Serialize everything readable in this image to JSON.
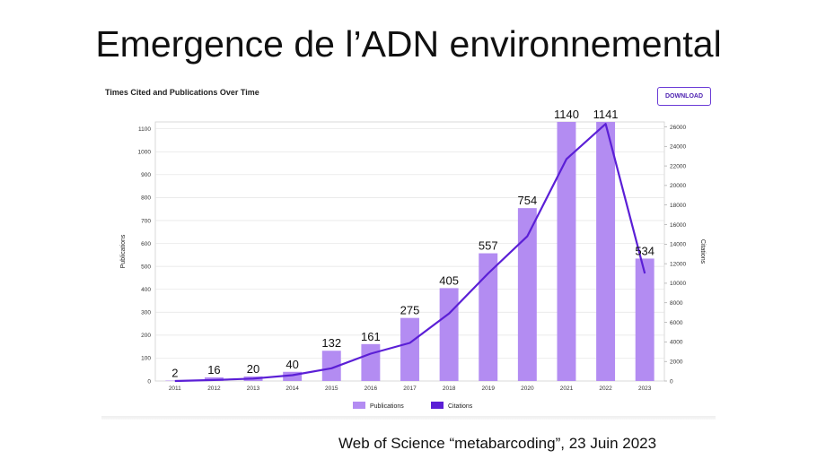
{
  "slide": {
    "title": "Emergence de l’ADN environnemental",
    "source": "Web of Science “metabarcoding”, 23 Juin 2023"
  },
  "panel": {
    "title": "Times Cited and Publications Over Time",
    "download_label": "DOWNLOAD"
  },
  "colors": {
    "publications_bar": "#b38cf2",
    "citations_line": "#5b1fd6",
    "grid": "#e3e3e3",
    "download_border": "#6a3bd6"
  },
  "chart_data": {
    "type": "bar",
    "title": "Times Cited and Publications Over Time",
    "categories": [
      "2011",
      "2012",
      "2013",
      "2014",
      "2015",
      "2016",
      "2017",
      "2018",
      "2019",
      "2020",
      "2021",
      "2022",
      "2023"
    ],
    "ylabel": "Publications",
    "y2label": "Citations",
    "ylim": [
      0,
      1130
    ],
    "y_ticks": [
      0,
      100,
      200,
      300,
      400,
      500,
      600,
      700,
      800,
      900,
      1000,
      1100
    ],
    "y2lim": [
      0,
      26500
    ],
    "y2_ticks": [
      0,
      2000,
      4000,
      6000,
      8000,
      10000,
      12000,
      14000,
      16000,
      18000,
      20000,
      22000,
      24000,
      26000
    ],
    "grid": true,
    "legend_position": "bottom",
    "series": [
      {
        "name": "Publications",
        "type": "bar",
        "axis": "left",
        "values": [
          2,
          16,
          20,
          40,
          132,
          161,
          275,
          405,
          557,
          754,
          1140,
          1141,
          534
        ],
        "labels": [
          "2",
          "16",
          "20",
          "40",
          "132",
          "161",
          "275",
          "405",
          "557",
          "754",
          "1140",
          "1141",
          "534"
        ]
      },
      {
        "name": "Citations",
        "type": "line",
        "axis": "right",
        "values": [
          0,
          100,
          250,
          600,
          1300,
          2800,
          3900,
          6900,
          11000,
          14800,
          22700,
          26300,
          11000
        ]
      }
    ]
  }
}
